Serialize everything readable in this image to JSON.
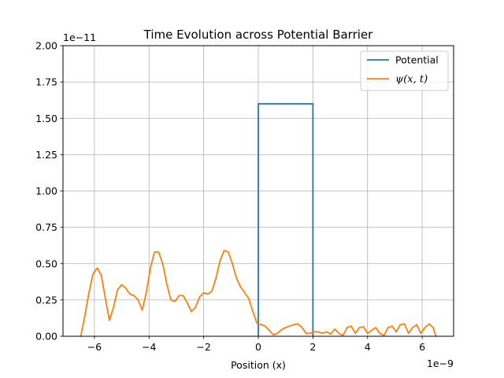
{
  "chart_data": {
    "type": "line",
    "title": "Time Evolution across Potential Barrier",
    "xlabel": "Position (x)",
    "ylabel": "",
    "x_offset_text": "1e−9",
    "y_offset_text": "1e−11",
    "xlim": [
      -7.15,
      7.15
    ],
    "ylim": [
      0.0,
      2.0
    ],
    "grid": true,
    "legend_position": "upper right",
    "x_ticks": [
      {
        "value": -6,
        "label": "−6"
      },
      {
        "value": -4,
        "label": "−4"
      },
      {
        "value": -2,
        "label": "−2"
      },
      {
        "value": 0,
        "label": "0"
      },
      {
        "value": 2,
        "label": "2"
      },
      {
        "value": 4,
        "label": "4"
      },
      {
        "value": 6,
        "label": "6"
      }
    ],
    "y_ticks": [
      {
        "value": 0.0,
        "label": "0.00"
      },
      {
        "value": 0.25,
        "label": "0.25"
      },
      {
        "value": 0.5,
        "label": "0.50"
      },
      {
        "value": 0.75,
        "label": "0.75"
      },
      {
        "value": 1.0,
        "label": "1.00"
      },
      {
        "value": 1.25,
        "label": "1.25"
      },
      {
        "value": 1.5,
        "label": "1.50"
      },
      {
        "value": 1.75,
        "label": "1.75"
      },
      {
        "value": 2.0,
        "label": "2.00"
      }
    ],
    "series": [
      {
        "name": "Potential",
        "color": "#1f77b4",
        "x": [
          0.0,
          0.0,
          2.0,
          2.0
        ],
        "y": [
          0.0,
          1.6,
          1.6,
          0.0
        ]
      },
      {
        "name": "ψ(x, t)",
        "color": "#ff7f0e",
        "x": [
          -6.5,
          -6.35,
          -6.2,
          -6.05,
          -5.9,
          -5.75,
          -5.6,
          -5.45,
          -5.3,
          -5.15,
          -5.0,
          -4.85,
          -4.7,
          -4.55,
          -4.4,
          -4.25,
          -4.1,
          -3.95,
          -3.8,
          -3.65,
          -3.5,
          -3.35,
          -3.2,
          -3.05,
          -2.9,
          -2.75,
          -2.6,
          -2.45,
          -2.3,
          -2.15,
          -2.0,
          -1.85,
          -1.7,
          -1.55,
          -1.4,
          -1.25,
          -1.1,
          -0.95,
          -0.8,
          -0.65,
          -0.5,
          -0.35,
          -0.2,
          -0.05,
          0.1,
          0.25,
          0.4,
          0.55,
          0.7,
          0.85,
          1.0,
          1.15,
          1.3,
          1.45,
          1.6,
          1.75,
          1.9,
          2.05,
          2.2,
          2.35,
          2.5,
          2.65,
          2.8,
          2.95,
          3.1,
          3.25,
          3.4,
          3.55,
          3.7,
          3.85,
          4.0,
          4.15,
          4.3,
          4.45,
          4.6,
          4.75,
          4.9,
          5.05,
          5.2,
          5.35,
          5.5,
          5.65,
          5.8,
          5.95,
          6.1,
          6.25,
          6.4,
          6.5
        ],
        "y": [
          0.0,
          0.14,
          0.3,
          0.43,
          0.47,
          0.42,
          0.26,
          0.11,
          0.2,
          0.32,
          0.355,
          0.33,
          0.29,
          0.28,
          0.25,
          0.18,
          0.3,
          0.47,
          0.58,
          0.58,
          0.5,
          0.36,
          0.25,
          0.24,
          0.28,
          0.28,
          0.23,
          0.17,
          0.2,
          0.27,
          0.3,
          0.29,
          0.31,
          0.4,
          0.52,
          0.59,
          0.58,
          0.5,
          0.4,
          0.34,
          0.3,
          0.26,
          0.17,
          0.09,
          0.08,
          0.07,
          0.04,
          0.01,
          0.02,
          0.045,
          0.06,
          0.07,
          0.08,
          0.085,
          0.06,
          0.02,
          0.02,
          0.03,
          0.03,
          0.02,
          0.03,
          0.015,
          0.05,
          0.02,
          0.005,
          0.06,
          0.07,
          0.02,
          0.06,
          0.065,
          0.02,
          0.04,
          0.06,
          0.02,
          0.005,
          0.06,
          0.07,
          0.03,
          0.08,
          0.085,
          0.02,
          0.06,
          0.08,
          0.02,
          0.06,
          0.085,
          0.06,
          0.0
        ]
      }
    ]
  }
}
